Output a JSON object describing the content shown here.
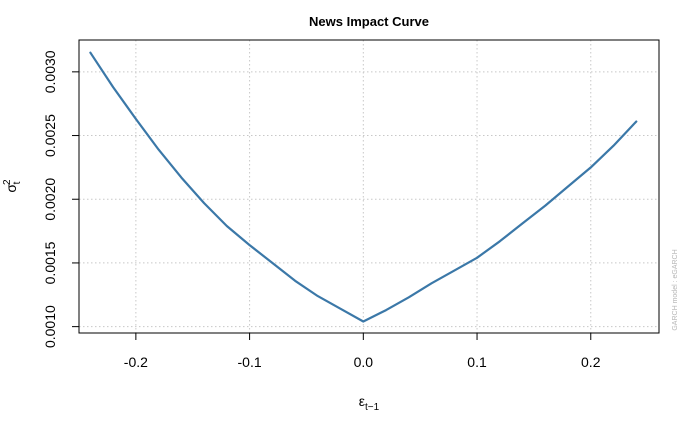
{
  "chart_data": {
    "type": "line",
    "title": "News Impact Curve",
    "xlabel": {
      "base": "ε",
      "sub": "t−1"
    },
    "ylabel": {
      "base": "σ",
      "sup": "2",
      "sub": "t"
    },
    "side_note": "GARCH model : eGARCH",
    "xlim": [
      -0.25,
      0.26
    ],
    "ylim": [
      0.00095,
      0.00325
    ],
    "x_ticks": [
      -0.2,
      -0.1,
      0.0,
      0.1,
      0.2
    ],
    "x_tick_labels": [
      "-0.2",
      "-0.1",
      "0.0",
      "0.1",
      "0.2"
    ],
    "y_ticks": [
      0.001,
      0.0015,
      0.002,
      0.0025,
      0.003
    ],
    "y_tick_labels": [
      "0.0010",
      "0.0015",
      "0.0020",
      "0.0025",
      "0.0030"
    ],
    "grid": true,
    "line_color": "#3b78a8",
    "series": [
      {
        "x": [
          -0.24,
          -0.22,
          -0.2,
          -0.18,
          -0.16,
          -0.14,
          -0.12,
          -0.1,
          -0.08,
          -0.06,
          -0.04,
          -0.02,
          0.0,
          0.02,
          0.04,
          0.06,
          0.08,
          0.1,
          0.12,
          0.14,
          0.16,
          0.18,
          0.2,
          0.22,
          0.24
        ],
        "y": [
          0.00315,
          0.00288,
          0.00263,
          0.00239,
          0.00217,
          0.00197,
          0.00179,
          0.00164,
          0.0015,
          0.00136,
          0.00124,
          0.00114,
          0.00104,
          0.00113,
          0.00123,
          0.00134,
          0.00144,
          0.00154,
          0.00167,
          0.00181,
          0.00195,
          0.0021,
          0.00225,
          0.00242,
          0.00261
        ]
      }
    ]
  }
}
